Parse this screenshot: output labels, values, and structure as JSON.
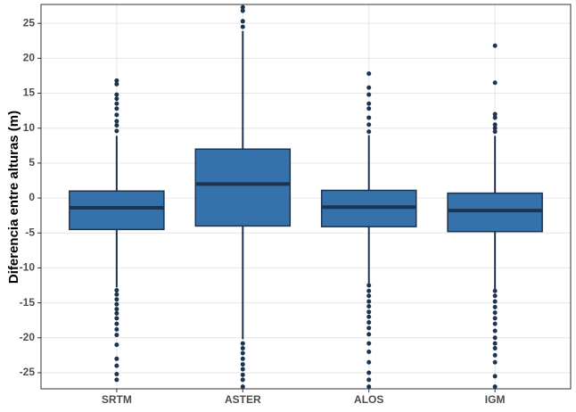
{
  "chart_data": {
    "type": "box",
    "ylabel": "Diferencia entre alturas (m)",
    "categories": [
      "SRTM",
      "ASTER",
      "ALOS",
      "IGM"
    ],
    "color": "#3572ab",
    "edge_color": "#1c3450",
    "boxes": [
      {
        "min": -12.8,
        "q1": -4.5,
        "median": -1.4,
        "q3": 1.0,
        "max": 8.9,
        "outliers": [
          16.8,
          16.3,
          14.8,
          14.2,
          13.5,
          12.8,
          11.9,
          11.0,
          10.4,
          9.6,
          -13.2,
          -13.8,
          -14.5,
          -15.2,
          -15.9,
          -16.5,
          -17.2,
          -18.0,
          -18.8,
          -19.6,
          -21.0,
          -23.0,
          -24.0,
          -25.2,
          -26.0
        ]
      },
      {
        "min": -20.2,
        "q1": -4.0,
        "median": 2.0,
        "q3": 7.0,
        "max": 23.9,
        "outliers": [
          27.3,
          26.8,
          25.3,
          24.5,
          -20.8,
          -21.5,
          -22.2,
          -23.0,
          -23.8,
          -24.5,
          -25.3,
          -26.0,
          -27.0
        ]
      },
      {
        "min": -12.2,
        "q1": -4.1,
        "median": -1.3,
        "q3": 1.1,
        "max": 9.0,
        "outliers": [
          17.8,
          15.8,
          14.8,
          13.5,
          12.8,
          11.5,
          10.5,
          9.5,
          -12.5,
          -13.3,
          -14.0,
          -14.8,
          -15.5,
          -16.3,
          -17.0,
          -17.8,
          -18.6,
          -19.5,
          -20.8,
          -22.0,
          -23.5,
          -25.0,
          -26.0,
          -27.0
        ]
      },
      {
        "min": -13.0,
        "q1": -4.8,
        "median": -1.8,
        "q3": 0.7,
        "max": 8.9,
        "outliers": [
          21.8,
          16.5,
          12.0,
          11.5,
          10.5,
          10.0,
          9.5,
          -13.3,
          -14.0,
          -14.8,
          -15.6,
          -16.4,
          -17.2,
          -18.0,
          -19.0,
          -20.0,
          -20.8,
          -21.5,
          -22.5,
          -23.5,
          -25.5,
          -27.0
        ]
      }
    ],
    "ylim": [
      -27.3,
      27.7
    ],
    "yticks": [
      -25,
      -20,
      -15,
      -10,
      -5,
      0,
      5,
      10,
      15,
      20,
      25
    ],
    "grid": true
  }
}
